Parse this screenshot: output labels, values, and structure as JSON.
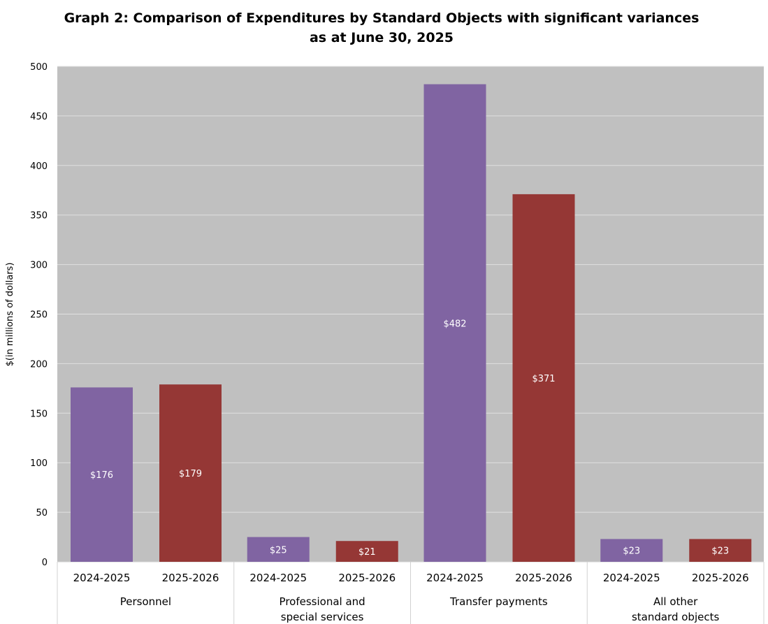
{
  "chart_data": {
    "type": "bar",
    "title": [
      "Graph 2: Comparison of Expenditures by Standard Objects with significant variances",
      "as at June 30, 2025"
    ],
    "ylabel": "$(in millions of dollars)",
    "xlabel": "",
    "ylim": [
      0,
      500
    ],
    "yticks": [
      0,
      50,
      100,
      150,
      200,
      250,
      300,
      350,
      400,
      450,
      500
    ],
    "grid": true,
    "legend": "none",
    "groups": [
      {
        "label": [
          "Personnel"
        ],
        "bars": [
          {
            "period": "2024-2025",
            "value": 176,
            "label": "$176"
          },
          {
            "period": "2025-2026",
            "value": 179,
            "label": "$179"
          }
        ]
      },
      {
        "label": [
          "Professional and",
          "special services"
        ],
        "bars": [
          {
            "period": "2024-2025",
            "value": 25,
            "label": "$25"
          },
          {
            "period": "2025-2026",
            "value": 21,
            "label": "$21"
          }
        ]
      },
      {
        "label": [
          "Transfer payments"
        ],
        "bars": [
          {
            "period": "2024-2025",
            "value": 482,
            "label": "$482"
          },
          {
            "period": "2025-2026",
            "value": 371,
            "label": "$371"
          }
        ]
      },
      {
        "label": [
          "All other",
          "standard objects"
        ],
        "bars": [
          {
            "period": "2024-2025",
            "value": 23,
            "label": "$23"
          },
          {
            "period": "2025-2026",
            "value": 23,
            "label": "$23"
          }
        ]
      }
    ],
    "colors": {
      "2024-2025": "#8064A2",
      "2025-2026": "#953735",
      "plot_background": "#C0C0C0",
      "gridline": "#E0E0E0"
    }
  }
}
